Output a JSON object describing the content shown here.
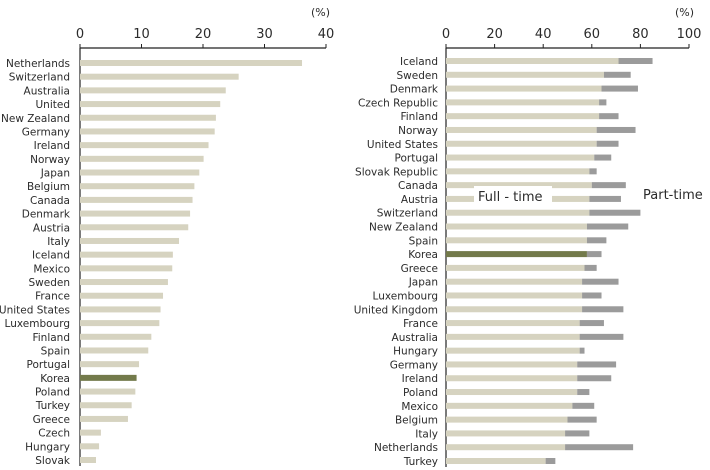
{
  "colors": {
    "bar": "#d6d3c0",
    "highlight": "#737a4b",
    "part_time": "#9b9b9b",
    "axis": "#222222"
  },
  "chart_data": [
    {
      "type": "bar",
      "orientation": "horizontal",
      "unit": "(%)",
      "xlim": [
        0,
        40
      ],
      "ticks": [
        "0",
        "10",
        "20",
        "30",
        "40"
      ],
      "highlight": "Korea",
      "categories": [
        "Netherlands",
        "Switzerland",
        "Australia",
        "United",
        "New Zealand",
        "Germany",
        "Ireland",
        "Norway",
        "Japan",
        "Belgium",
        "Canada",
        "Denmark",
        "Austria",
        "Italy",
        "Iceland",
        "Mexico",
        "Sweden",
        "France",
        "United States",
        "Luxembourg",
        "Finland",
        "Spain",
        "Portugal",
        "Korea",
        "Poland",
        "Turkey",
        "Greece",
        "Czech",
        "Hungary",
        "Slovak"
      ],
      "values": [
        36.1,
        25.8,
        23.7,
        22.8,
        22.1,
        21.9,
        20.9,
        20.1,
        19.4,
        18.6,
        18.3,
        17.9,
        17.6,
        16.1,
        15.1,
        15.0,
        14.3,
        13.5,
        13.1,
        12.9,
        11.6,
        11.1,
        9.6,
        9.2,
        9.0,
        8.4,
        7.8,
        3.4,
        3.1,
        2.6
      ]
    },
    {
      "type": "bar",
      "orientation": "horizontal",
      "stacked": true,
      "unit": "(%)",
      "xlim": [
        0,
        100
      ],
      "ticks": [
        "0",
        "20",
        "40",
        "60",
        "80",
        "100"
      ],
      "highlight": "Korea",
      "categories": [
        "Iceland",
        "Sweden",
        "Denmark",
        "Czech Republic",
        "Finland",
        "Norway",
        "United States",
        "Portugal",
        "Slovak Republic",
        "Canada",
        "Austria",
        "Switzerland",
        "New Zealand",
        "Spain",
        "Korea",
        "Greece",
        "Japan",
        "Luxembourg",
        "United Kingdom",
        "France",
        "Australia",
        "Hungary",
        "Germany",
        "Ireland",
        "Poland",
        "Mexico",
        "Belgium",
        "Italy",
        "Netherlands",
        "Turkey"
      ],
      "series": [
        {
          "name": "Full - time",
          "values": [
            71,
            65,
            64,
            63,
            63,
            62,
            62,
            61,
            59,
            60,
            59,
            59,
            58,
            58,
            58,
            57,
            56,
            56,
            56,
            55,
            55,
            55,
            54,
            54,
            54,
            52,
            50,
            49,
            49,
            41
          ]
        },
        {
          "name": "Part-time",
          "values": [
            14,
            11,
            15,
            3,
            8,
            16,
            9,
            7,
            3,
            14,
            13,
            21,
            17,
            8,
            6,
            5,
            15,
            8,
            17,
            10,
            18,
            2,
            16,
            14,
            5,
            9,
            12,
            10,
            28,
            4
          ]
        }
      ]
    }
  ]
}
